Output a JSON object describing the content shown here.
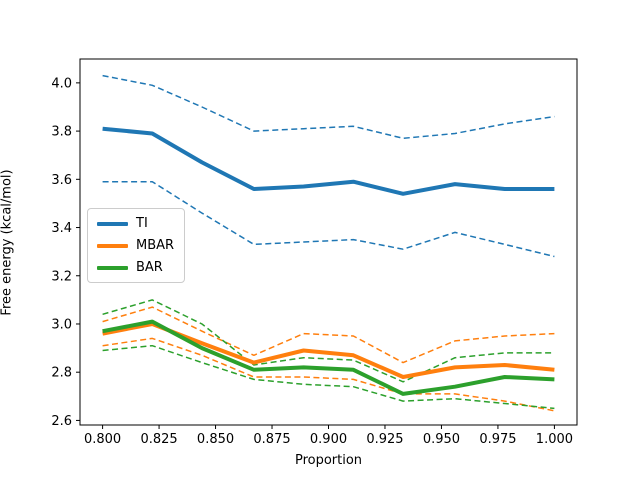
{
  "chart_data": {
    "type": "line",
    "title": "",
    "xlabel": "Proportion",
    "ylabel": "Free energy (kcal/mol)",
    "xlim": [
      0.79,
      1.01
    ],
    "ylim": [
      2.581,
      4.099
    ],
    "grid": false,
    "legend_position": "center left",
    "axis_color": "#000000",
    "x": [
      0.8,
      0.822,
      0.844,
      0.867,
      0.889,
      0.911,
      0.933,
      0.956,
      0.978,
      1.0
    ],
    "x_tick_values": [
      0.8,
      0.825,
      0.85,
      0.875,
      0.9,
      0.925,
      0.95,
      0.975,
      1.0
    ],
    "x_tick_labels": [
      "0.800",
      "0.825",
      "0.850",
      "0.875",
      "0.900",
      "0.925",
      "0.950",
      "0.975",
      "1.000"
    ],
    "y_tick_values": [
      2.6,
      2.8,
      3.0,
      3.2,
      3.4,
      3.6,
      3.8,
      4.0
    ],
    "y_tick_labels": [
      "2.6",
      "2.8",
      "3.0",
      "3.2",
      "3.4",
      "3.6",
      "3.8",
      "4.0"
    ],
    "legend_entries": [
      "TI",
      "MBAR",
      "BAR"
    ],
    "series": [
      {
        "name": "TI",
        "color": "#1f77b4",
        "style": "solid",
        "width": 4,
        "values": [
          3.81,
          3.79,
          3.67,
          3.56,
          3.57,
          3.59,
          3.54,
          3.58,
          3.56,
          3.56
        ]
      },
      {
        "name": "TI upper bound",
        "color": "#1f77b4",
        "style": "dashed",
        "width": 1.5,
        "values": [
          4.03,
          3.99,
          3.9,
          3.8,
          3.81,
          3.82,
          3.77,
          3.79,
          3.83,
          3.86
        ]
      },
      {
        "name": "TI lower bound",
        "color": "#1f77b4",
        "style": "dashed",
        "width": 1.5,
        "values": [
          3.59,
          3.59,
          3.46,
          3.33,
          3.34,
          3.35,
          3.31,
          3.38,
          3.33,
          3.28
        ]
      },
      {
        "name": "MBAR",
        "color": "#ff7f0e",
        "style": "solid",
        "width": 4,
        "values": [
          2.96,
          3.0,
          2.92,
          2.84,
          2.89,
          2.87,
          2.78,
          2.82,
          2.83,
          2.81
        ]
      },
      {
        "name": "MBAR upper bound",
        "color": "#ff7f0e",
        "style": "dashed",
        "width": 1.5,
        "values": [
          3.01,
          3.07,
          2.97,
          2.87,
          2.96,
          2.95,
          2.84,
          2.93,
          2.95,
          2.96
        ]
      },
      {
        "name": "MBAR lower bound",
        "color": "#ff7f0e",
        "style": "dashed",
        "width": 1.5,
        "values": [
          2.91,
          2.94,
          2.87,
          2.78,
          2.78,
          2.77,
          2.71,
          2.71,
          2.68,
          2.64
        ]
      },
      {
        "name": "BAR",
        "color": "#2ca02c",
        "style": "solid",
        "width": 4,
        "values": [
          2.97,
          3.01,
          2.9,
          2.81,
          2.82,
          2.81,
          2.71,
          2.74,
          2.78,
          2.77
        ]
      },
      {
        "name": "BAR upper bound",
        "color": "#2ca02c",
        "style": "dashed",
        "width": 1.5,
        "values": [
          3.04,
          3.1,
          3.0,
          2.83,
          2.86,
          2.85,
          2.76,
          2.86,
          2.88,
          2.88
        ]
      },
      {
        "name": "BAR lower bound",
        "color": "#2ca02c",
        "style": "dashed",
        "width": 1.5,
        "values": [
          2.89,
          2.91,
          2.84,
          2.77,
          2.75,
          2.74,
          2.68,
          2.69,
          2.67,
          2.65
        ]
      }
    ]
  }
}
